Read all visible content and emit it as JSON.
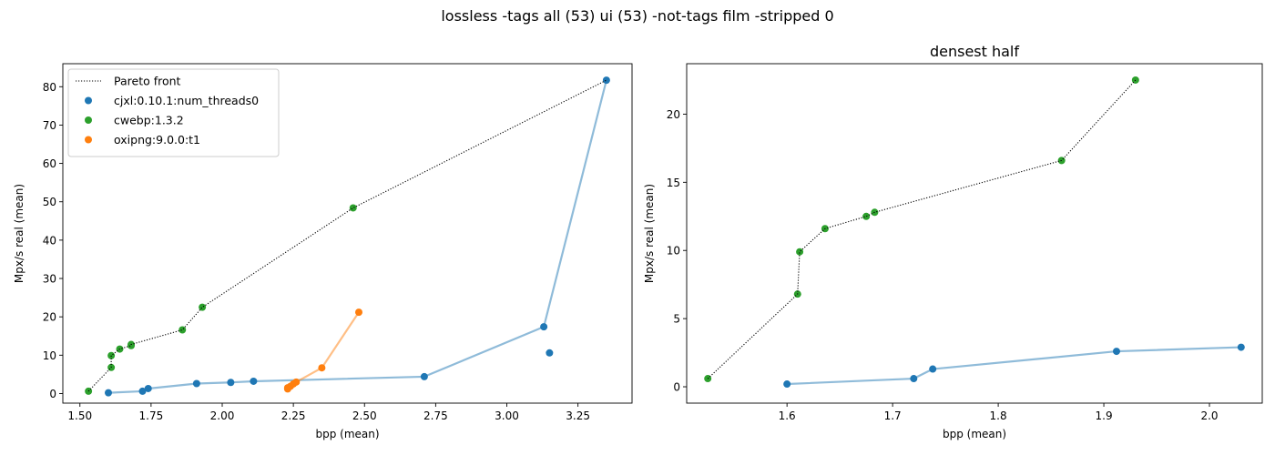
{
  "suptitle": "lossless -tags all (53) ui (53) -not-tags film -stripped 0",
  "colors": {
    "cjxl": "#1f77b4",
    "cwebp": "#2ca02c",
    "oxipng": "#ff7f0e",
    "pareto": "#000000"
  },
  "chart_data": [
    {
      "type": "scatter",
      "title": "",
      "xlabel": "bpp (mean)",
      "ylabel": "Mpx/s real (mean)",
      "xlim": [
        1.44,
        3.44
      ],
      "ylim": [
        -2.5,
        86
      ],
      "xticks": [
        1.5,
        1.75,
        2.0,
        2.25,
        2.5,
        2.75,
        3.0,
        3.25
      ],
      "xtick_labels": [
        "1.50",
        "1.75",
        "2.00",
        "2.25",
        "2.50",
        "2.75",
        "3.00",
        "3.25"
      ],
      "yticks": [
        0,
        10,
        20,
        30,
        40,
        50,
        60,
        70,
        80
      ],
      "ytick_labels": [
        "0",
        "10",
        "20",
        "30",
        "40",
        "50",
        "60",
        "70",
        "80"
      ],
      "legend": {
        "position": "top-left",
        "entries": [
          "Pareto front",
          "cjxl:0.10.1:num_threads0",
          "cwebp:1.3.2",
          "oxipng:9.0.0:t1"
        ]
      },
      "series": [
        {
          "name": "cjxl:0.10.1:num_threads0",
          "color_key": "cjxl",
          "line": [
            [
              1.6,
              0.2
            ],
            [
              1.72,
              0.6
            ],
            [
              1.74,
              1.3
            ],
            [
              1.91,
              2.6
            ],
            [
              2.03,
              2.9
            ],
            [
              2.11,
              3.2
            ],
            [
              2.71,
              4.4
            ],
            [
              3.13,
              17.4
            ],
            [
              3.35,
              81.7
            ]
          ],
          "points": [
            [
              1.6,
              0.2
            ],
            [
              1.72,
              0.6
            ],
            [
              1.74,
              1.3
            ],
            [
              1.91,
              2.6
            ],
            [
              2.03,
              2.9
            ],
            [
              2.11,
              3.2
            ],
            [
              2.71,
              4.4
            ],
            [
              3.13,
              17.4
            ],
            [
              3.15,
              10.6
            ],
            [
              3.35,
              81.7
            ]
          ]
        },
        {
          "name": "cwebp:1.3.2",
          "color_key": "cwebp",
          "line": [],
          "points": [
            [
              1.53,
              0.6
            ],
            [
              1.61,
              6.8
            ],
            [
              1.61,
              9.9
            ],
            [
              1.64,
              11.6
            ],
            [
              1.68,
              12.5
            ],
            [
              1.68,
              12.8
            ],
            [
              1.86,
              16.6
            ],
            [
              1.93,
              22.5
            ],
            [
              2.46,
              48.4
            ]
          ]
        },
        {
          "name": "oxipng:9.0.0:t1",
          "color_key": "oxipng",
          "line": [
            [
              2.23,
              1.2
            ],
            [
              2.23,
              1.5
            ],
            [
              2.24,
              1.9
            ],
            [
              2.25,
              2.5
            ],
            [
              2.26,
              3.0
            ],
            [
              2.35,
              6.7
            ],
            [
              2.48,
              21.2
            ]
          ],
          "points": [
            [
              2.23,
              1.2
            ],
            [
              2.23,
              1.5
            ],
            [
              2.24,
              1.9
            ],
            [
              2.25,
              2.5
            ],
            [
              2.26,
              3.0
            ],
            [
              2.35,
              6.7
            ],
            [
              2.48,
              21.2
            ]
          ]
        }
      ],
      "pareto_front": [
        [
          1.53,
          0.6
        ],
        [
          1.61,
          6.8
        ],
        [
          1.61,
          9.9
        ],
        [
          1.64,
          11.6
        ],
        [
          1.68,
          12.5
        ],
        [
          1.68,
          12.8
        ],
        [
          1.86,
          16.6
        ],
        [
          1.93,
          22.5
        ],
        [
          2.46,
          48.4
        ],
        [
          3.35,
          81.7
        ]
      ]
    },
    {
      "type": "scatter",
      "title": "densest half",
      "xlabel": "bpp (mean)",
      "ylabel": "Mpx/s real (mean)",
      "xlim": [
        1.505,
        2.05
      ],
      "ylim": [
        -1.2,
        23.7
      ],
      "xticks": [
        1.6,
        1.7,
        1.8,
        1.9,
        2.0
      ],
      "xtick_labels": [
        "1.6",
        "1.7",
        "1.8",
        "1.9",
        "2.0"
      ],
      "yticks": [
        0,
        5,
        10,
        15,
        20
      ],
      "ytick_labels": [
        "0",
        "5",
        "10",
        "15",
        "20"
      ],
      "series": [
        {
          "name": "cjxl:0.10.1:num_threads0",
          "color_key": "cjxl",
          "line": [
            [
              1.6,
              0.2
            ],
            [
              1.72,
              0.6
            ],
            [
              1.738,
              1.3
            ],
            [
              1.912,
              2.6
            ],
            [
              2.03,
              2.9
            ]
          ],
          "points": [
            [
              1.6,
              0.2
            ],
            [
              1.72,
              0.6
            ],
            [
              1.738,
              1.3
            ],
            [
              1.912,
              2.6
            ],
            [
              2.03,
              2.9
            ]
          ]
        },
        {
          "name": "cwebp:1.3.2",
          "color_key": "cwebp",
          "line": [],
          "points": [
            [
              1.525,
              0.6
            ],
            [
              1.61,
              6.8
            ],
            [
              1.612,
              9.9
            ],
            [
              1.636,
              11.6
            ],
            [
              1.675,
              12.5
            ],
            [
              1.683,
              12.8
            ],
            [
              1.86,
              16.6
            ],
            [
              1.93,
              22.5
            ]
          ]
        }
      ],
      "pareto_front": [
        [
          1.525,
          0.6
        ],
        [
          1.61,
          6.8
        ],
        [
          1.612,
          9.9
        ],
        [
          1.636,
          11.6
        ],
        [
          1.675,
          12.5
        ],
        [
          1.683,
          12.8
        ],
        [
          1.86,
          16.6
        ],
        [
          1.93,
          22.5
        ]
      ]
    }
  ]
}
